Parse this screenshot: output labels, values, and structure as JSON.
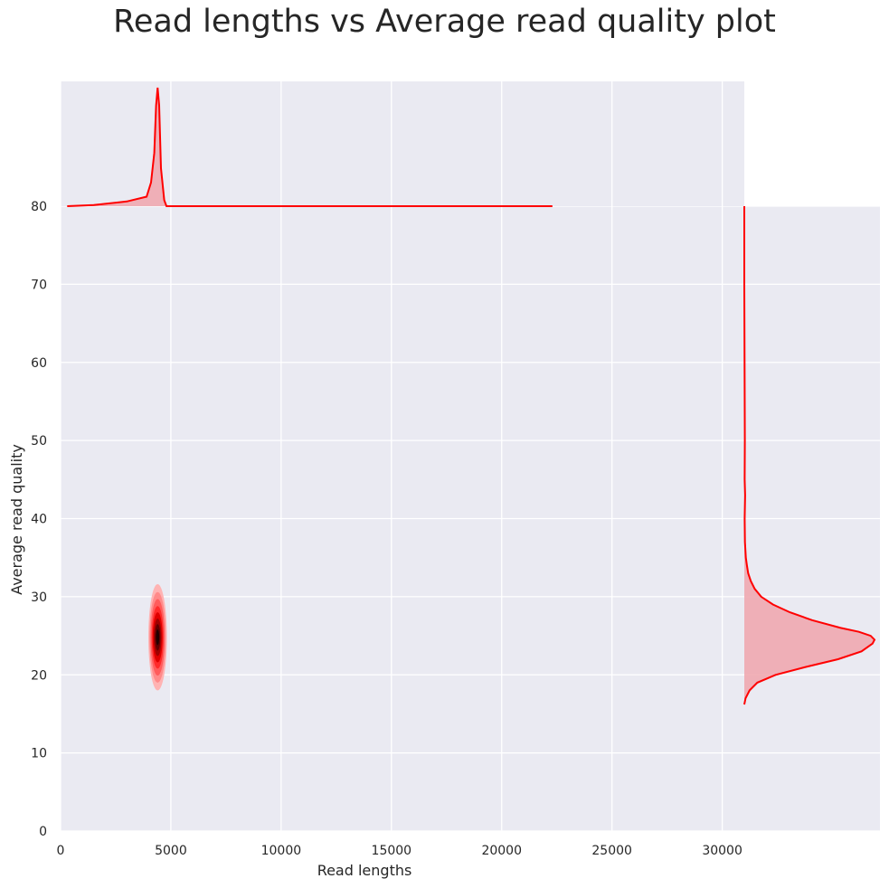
{
  "chart_data": {
    "type": "scatter",
    "title": "Read lengths vs Average read quality plot",
    "xlabel": "Read lengths",
    "ylabel": "Average read quality",
    "xlim": [
      0,
      31000
    ],
    "ylim": [
      0,
      80
    ],
    "x_ticks": [
      0,
      5000,
      10000,
      15000,
      20000,
      25000,
      30000
    ],
    "y_ticks": [
      0,
      10,
      20,
      30,
      40,
      50,
      60,
      70,
      80
    ],
    "grid": true,
    "background_color": "#eaeaf2",
    "series_color": "#ff0000",
    "fill_color": "#f0a8b0",
    "kde_center": {
      "x": 4400,
      "y": 24.8
    },
    "kde_levels": [
      {
        "rx": 420,
        "ry": 6.8,
        "color": "#ffb3b3"
      },
      {
        "rx": 370,
        "ry": 5.8,
        "color": "#ff8a8a"
      },
      {
        "rx": 320,
        "ry": 4.9,
        "color": "#ff5c5c"
      },
      {
        "rx": 270,
        "ry": 4.0,
        "color": "#ff2a2a"
      },
      {
        "rx": 225,
        "ry": 3.2,
        "color": "#e00000"
      },
      {
        "rx": 175,
        "ry": 2.4,
        "color": "#a00000"
      },
      {
        "rx": 125,
        "ry": 1.7,
        "color": "#600000"
      },
      {
        "rx": 75,
        "ry": 1.0,
        "color": "#200000"
      }
    ],
    "marginal_x": {
      "x": [
        300,
        1500,
        3000,
        3900,
        4100,
        4250,
        4330,
        4400,
        4470,
        4550,
        4700,
        4800,
        5200,
        8000,
        15000,
        22300
      ],
      "density": [
        0.0,
        0.01,
        0.04,
        0.08,
        0.2,
        0.45,
        0.85,
        1.0,
        0.85,
        0.32,
        0.05,
        0.0,
        0.0,
        0.0,
        0.0,
        0.0
      ]
    },
    "marginal_y": {
      "y": [
        16.2,
        17.0,
        18.0,
        19.0,
        20.0,
        21.0,
        22.0,
        23.0,
        24.0,
        24.5,
        25.0,
        25.5,
        26.0,
        27.0,
        28.0,
        29.0,
        30.0,
        31.0,
        32.0,
        33.0,
        34.0,
        35.0,
        36.0,
        37.0,
        40.0,
        43.0,
        45.0,
        50.0,
        60.0,
        70.0,
        80.0
      ],
      "density": [
        0.0,
        0.01,
        0.04,
        0.1,
        0.24,
        0.47,
        0.72,
        0.9,
        0.985,
        1.0,
        0.97,
        0.88,
        0.74,
        0.52,
        0.35,
        0.22,
        0.13,
        0.08,
        0.05,
        0.03,
        0.02,
        0.012,
        0.008,
        0.005,
        0.003,
        0.006,
        0.003,
        0.004,
        0.002,
        0.0,
        0.0
      ]
    }
  }
}
